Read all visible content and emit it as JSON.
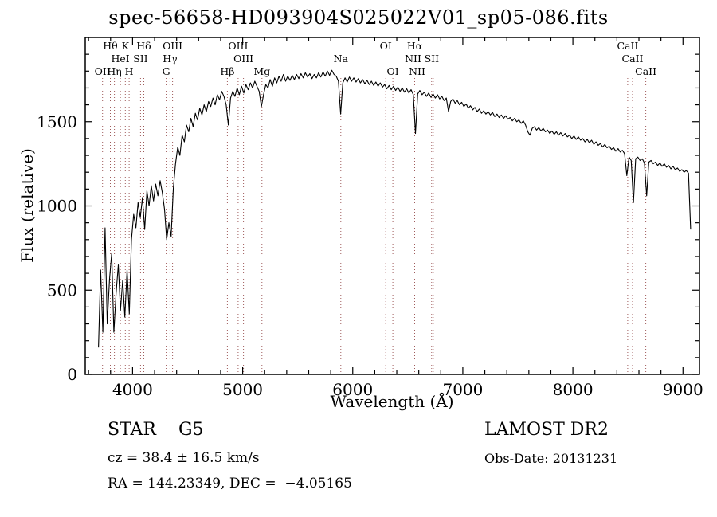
{
  "title": "spec-56658-HD093904S025022V01_sp05-086.fits",
  "annotations": {
    "class_label": "STAR    G5",
    "survey": "LAMOST DR2",
    "cz": "cz = 38.4 ± 16.5 km/s",
    "obs_date": "Obs-Date: 20131231",
    "coords": "RA = 144.23349, DEC =  −4.05165"
  },
  "chart_data": {
    "type": "line",
    "title": "spec-56658-HD093904S025022V01_sp05-086.fits",
    "xlabel": "Wavelength (Å)",
    "ylabel": "Flux (relative)",
    "xlim": [
      3570,
      9150
    ],
    "ylim": [
      0,
      2000
    ],
    "xticks": [
      4000,
      5000,
      6000,
      7000,
      8000,
      9000
    ],
    "yticks": [
      0,
      500,
      1000,
      1500
    ],
    "x_minor_step": 200,
    "y_minor_step": 100,
    "grid": false,
    "legend": false,
    "line_color": "#000000",
    "marker_color": "#9e5a5a",
    "spectral_lines": [
      {
        "wavelength": 3727,
        "label": "OII",
        "row": 3
      },
      {
        "wavelength": 3798,
        "label": "Hθ",
        "row": 1
      },
      {
        "wavelength": 3835,
        "label": "Hη",
        "row": 3
      },
      {
        "wavelength": 3889,
        "label": "HeI",
        "row": 2
      },
      {
        "wavelength": 3934,
        "label": "K",
        "row": 1
      },
      {
        "wavelength": 3969,
        "label": "H",
        "row": 3
      },
      {
        "wavelength": 4072,
        "label": "SII",
        "row": 2
      },
      {
        "wavelength": 4102,
        "label": "Hδ",
        "row": 1
      },
      {
        "wavelength": 4305,
        "label": "G",
        "row": 3
      },
      {
        "wavelength": 4340,
        "label": "Hγ",
        "row": 2
      },
      {
        "wavelength": 4363,
        "label": "OIII",
        "row": 1
      },
      {
        "wavelength": 4861,
        "label": "Hβ",
        "row": 3
      },
      {
        "wavelength": 4959,
        "label": "OIII",
        "row": 1
      },
      {
        "wavelength": 5007,
        "label": "OIII",
        "row": 2
      },
      {
        "wavelength": 5175,
        "label": "Mg",
        "row": 3
      },
      {
        "wavelength": 5892,
        "label": "Na",
        "row": 2
      },
      {
        "wavelength": 6300,
        "label": "OI",
        "row": 1
      },
      {
        "wavelength": 6364,
        "label": "OI",
        "row": 3
      },
      {
        "wavelength": 6548,
        "label": "NII",
        "row": 2
      },
      {
        "wavelength": 6563,
        "label": "Hα",
        "row": 1
      },
      {
        "wavelength": 6584,
        "label": "NII",
        "row": 3
      },
      {
        "wavelength": 6717,
        "label": "SII",
        "row": 2
      },
      {
        "wavelength": 6731,
        "label": "",
        "row": 2
      },
      {
        "wavelength": 8498,
        "label": "CaII",
        "row": 1
      },
      {
        "wavelength": 8542,
        "label": "CaII",
        "row": 2
      },
      {
        "wavelength": 8662,
        "label": "CaII",
        "row": 3
      }
    ],
    "series": [
      {
        "name": "spectrum",
        "x0": 3690,
        "dx": 20,
        "flux": [
          160,
          620,
          250,
          870,
          300,
          560,
          720,
          250,
          480,
          650,
          380,
          560,
          340,
          620,
          360,
          800,
          950,
          870,
          1020,
          930,
          1050,
          860,
          1090,
          1000,
          1120,
          1030,
          1130,
          1060,
          1150,
          1080,
          980,
          800,
          900,
          820,
          1100,
          1250,
          1350,
          1300,
          1420,
          1380,
          1480,
          1440,
          1520,
          1470,
          1550,
          1510,
          1580,
          1540,
          1600,
          1560,
          1620,
          1590,
          1640,
          1600,
          1660,
          1630,
          1680,
          1650,
          1600,
          1480,
          1640,
          1680,
          1650,
          1700,
          1660,
          1710,
          1670,
          1720,
          1690,
          1730,
          1700,
          1740,
          1710,
          1680,
          1590,
          1660,
          1720,
          1700,
          1750,
          1710,
          1760,
          1730,
          1770,
          1740,
          1780,
          1740,
          1770,
          1745,
          1775,
          1750,
          1780,
          1755,
          1785,
          1760,
          1790,
          1765,
          1785,
          1755,
          1780,
          1760,
          1790,
          1765,
          1795,
          1770,
          1800,
          1775,
          1805,
          1780,
          1770,
          1740,
          1545,
          1730,
          1760,
          1735,
          1765,
          1740,
          1760,
          1735,
          1755,
          1730,
          1750,
          1725,
          1745,
          1720,
          1740,
          1715,
          1735,
          1710,
          1730,
          1705,
          1720,
          1695,
          1715,
          1690,
          1710,
          1685,
          1705,
          1680,
          1700,
          1675,
          1695,
          1670,
          1690,
          1660,
          1430,
          1665,
          1685,
          1660,
          1675,
          1650,
          1670,
          1645,
          1665,
          1640,
          1660,
          1635,
          1650,
          1625,
          1640,
          1560,
          1620,
          1635,
          1610,
          1625,
          1600,
          1615,
          1590,
          1605,
          1580,
          1595,
          1570,
          1585,
          1560,
          1575,
          1550,
          1565,
          1545,
          1560,
          1540,
          1555,
          1530,
          1545,
          1525,
          1540,
          1520,
          1535,
          1515,
          1525,
          1505,
          1520,
          1500,
          1510,
          1490,
          1505,
          1480,
          1440,
          1420,
          1460,
          1470,
          1450,
          1465,
          1445,
          1460,
          1440,
          1450,
          1430,
          1445,
          1425,
          1440,
          1420,
          1435,
          1415,
          1430,
          1410,
          1420,
          1400,
          1415,
          1395,
          1410,
          1390,
          1400,
          1380,
          1395,
          1375,
          1390,
          1365,
          1380,
          1360,
          1370,
          1350,
          1365,
          1345,
          1355,
          1335,
          1345,
          1325,
          1340,
          1320,
          1330,
          1310,
          1180,
          1290,
          1270,
          1020,
          1280,
          1290,
          1270,
          1280,
          1255,
          1060,
          1260,
          1270,
          1250,
          1260,
          1240,
          1255,
          1235,
          1250,
          1230,
          1240,
          1220,
          1235,
          1215,
          1225,
          1205,
          1215,
          1200,
          1210,
          1195,
          860
        ]
      }
    ]
  }
}
